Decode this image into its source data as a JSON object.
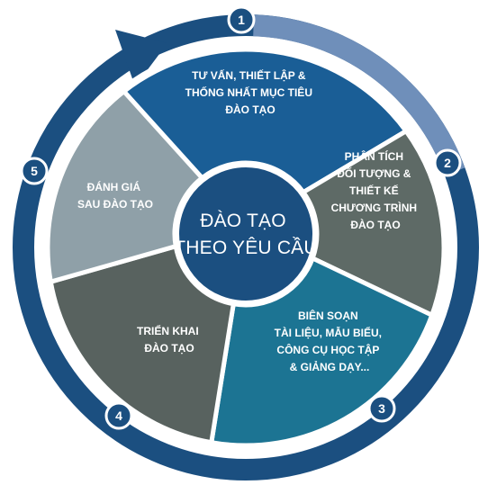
{
  "center": {
    "lines": [
      "ĐÀO TẠO",
      "THEO YÊU CẦU"
    ]
  },
  "steps": [
    {
      "number": "1",
      "lines": [
        "TƯ VẤN, THIẾT LẬP &",
        "THỐNG NHẤT MỤC TIÊU",
        "ĐÀO TẠO"
      ],
      "color": "#1a5e96"
    },
    {
      "number": "2",
      "lines": [
        "PHÂN TÍCH",
        "ĐỐI TƯỢNG &",
        "THIẾT KẾ",
        "CHƯƠNG TRÌNH",
        "ĐÀO TẠO"
      ],
      "color": "#5e6a66"
    },
    {
      "number": "3",
      "lines": [
        "BIÊN SOẠN",
        "TÀI LIỆU, MẪU BIỂU,",
        "CÔNG CỤ HỌC TẬP",
        "& GIẢNG DẠY..."
      ],
      "color": "#1c7493"
    },
    {
      "number": "4",
      "lines": [
        "TRIỂN KHAI",
        "ĐÀO TẠO"
      ],
      "color": "#58625f"
    },
    {
      "number": "5",
      "lines": [
        "ĐÁNH GIÁ",
        "SAU ĐÀO TẠO"
      ],
      "color": "#8fa0a8"
    }
  ],
  "colors": {
    "outer_ring": "#1b4f80",
    "ring_highlight": "#6f8fba",
    "center_fill": "#1b4f80",
    "marker_fill": "#1b4f80",
    "divider": "#ffffff"
  }
}
